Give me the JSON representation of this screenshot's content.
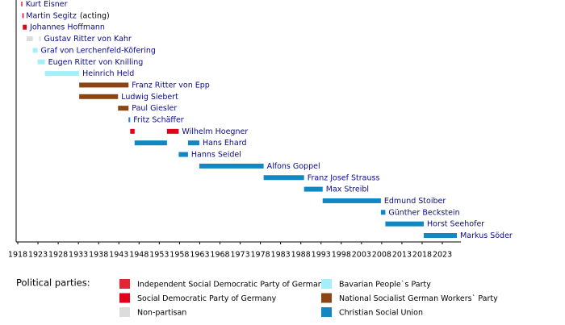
{
  "chart_data": {
    "type": "timeline",
    "xlim": [
      1918,
      2028
    ],
    "xticks": [
      1918,
      1923,
      1928,
      1933,
      1938,
      1943,
      1948,
      1953,
      1958,
      1963,
      1968,
      1973,
      1978,
      1983,
      1988,
      1993,
      1998,
      2003,
      2008,
      2013,
      2018,
      2023
    ],
    "rows": [
      {
        "name": "Kurt Eisner",
        "terms": [
          {
            "start": 1918.85,
            "end": 1919.15,
            "color": "#e32636"
          }
        ]
      },
      {
        "name": "Martin Segitz",
        "note": "(acting)",
        "terms": [
          {
            "start": 1919.15,
            "end": 1919.25,
            "color": "#e3001b"
          }
        ]
      },
      {
        "name": "Johannes Hoffmann",
        "terms": [
          {
            "start": 1919.25,
            "end": 1920.2,
            "color": "#e3001b"
          }
        ]
      },
      {
        "name": "Gustav Ritter von Kahr",
        "terms": [
          {
            "start": 1920.2,
            "end": 1921.7,
            "color": "#dcdcdc"
          },
          {
            "start": 1923.3,
            "end": 1923.7,
            "color": "#dcdcdc"
          }
        ]
      },
      {
        "name": "Graf von Lerchenfeld-Köfering",
        "terms": [
          {
            "start": 1921.7,
            "end": 1922.9,
            "color": "#a6eefa"
          }
        ]
      },
      {
        "name": "Eugen Ritter von Knilling",
        "terms": [
          {
            "start": 1922.9,
            "end": 1924.7,
            "color": "#a6eefa"
          }
        ]
      },
      {
        "name": "Heinrich Held",
        "terms": [
          {
            "start": 1924.7,
            "end": 1933.2,
            "color": "#a6eefa"
          }
        ]
      },
      {
        "name": "Franz Ritter von Epp",
        "terms": [
          {
            "start": 1933.2,
            "end": 1945.4,
            "color": "#8b4513"
          }
        ]
      },
      {
        "name": "Ludwig Siebert",
        "terms": [
          {
            "start": 1933.2,
            "end": 1942.8,
            "color": "#8b4513"
          }
        ]
      },
      {
        "name": "Paul Giesler",
        "terms": [
          {
            "start": 1942.8,
            "end": 1945.4,
            "color": "#8b4513"
          }
        ]
      },
      {
        "name": "Fritz Schäffer",
        "terms": [
          {
            "start": 1945.4,
            "end": 1945.8,
            "color": "#1188c4"
          }
        ]
      },
      {
        "name": "Wilhelm Hoegner",
        "terms": [
          {
            "start": 1945.8,
            "end": 1946.9,
            "color": "#e3001b"
          },
          {
            "start": 1954.9,
            "end": 1957.8,
            "color": "#e3001b"
          }
        ]
      },
      {
        "name": "Hans Ehard",
        "terms": [
          {
            "start": 1946.9,
            "end": 1954.9,
            "color": "#1188c4"
          },
          {
            "start": 1960.1,
            "end": 1962.9,
            "color": "#1188c4"
          }
        ]
      },
      {
        "name": "Hanns Seidel",
        "terms": [
          {
            "start": 1957.8,
            "end": 1960.1,
            "color": "#1188c4"
          }
        ]
      },
      {
        "name": "Alfons Goppel",
        "terms": [
          {
            "start": 1962.9,
            "end": 1978.8,
            "color": "#1188c4"
          }
        ]
      },
      {
        "name": "Franz Josef Strauss",
        "terms": [
          {
            "start": 1978.8,
            "end": 1988.8,
            "color": "#1188c4"
          }
        ]
      },
      {
        "name": "Max Streibl",
        "terms": [
          {
            "start": 1988.8,
            "end": 1993.4,
            "color": "#1188c4"
          }
        ]
      },
      {
        "name": "Edmund Stoiber",
        "terms": [
          {
            "start": 1993.4,
            "end": 2007.8,
            "color": "#1188c4"
          }
        ]
      },
      {
        "name": "Günther Beckstein",
        "terms": [
          {
            "start": 2007.8,
            "end": 2008.9,
            "color": "#1188c4"
          }
        ]
      },
      {
        "name": "Horst Seehofer",
        "terms": [
          {
            "start": 2008.9,
            "end": 2018.4,
            "color": "#1188c4"
          }
        ]
      },
      {
        "name": "Markus Söder",
        "terms": [
          {
            "start": 2018.4,
            "end": 2026.6,
            "color": "#1188c4"
          }
        ]
      }
    ],
    "legend_title": "Political parties:",
    "parties": [
      {
        "name": "Independent Social Democratic Party of Germany",
        "color": "#e32636"
      },
      {
        "name": "Social Democratic Party of Germany",
        "color": "#e3001b"
      },
      {
        "name": "Non-partisan",
        "color": "#dcdcdc"
      },
      {
        "name": "Bavarian People`s Party",
        "color": "#a6eefa"
      },
      {
        "name": "National Socialist German Workers` Party",
        "color": "#8b4513"
      },
      {
        "name": "Christian Social Union",
        "color": "#1188c4"
      }
    ]
  }
}
